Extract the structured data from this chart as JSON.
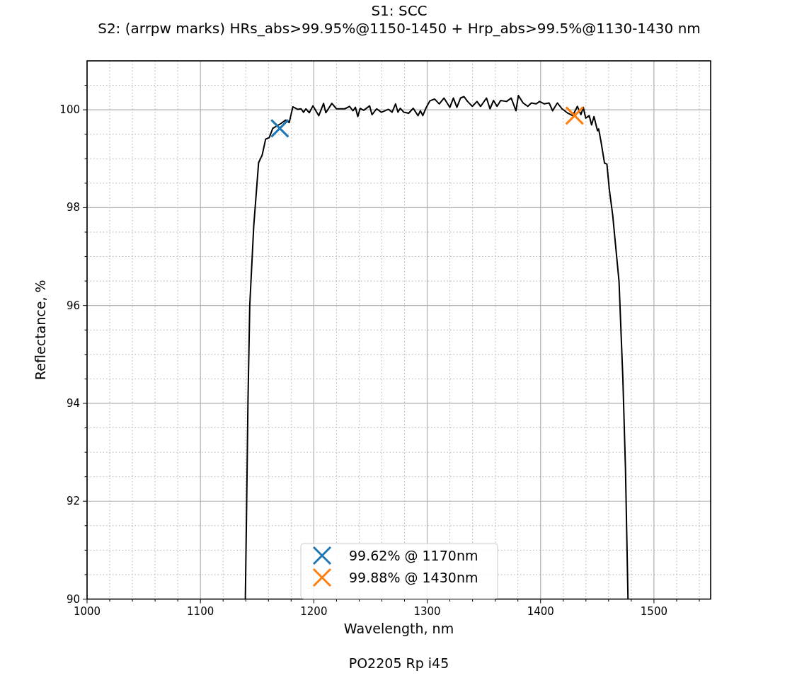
{
  "chart_data": {
    "type": "line",
    "title": "S1: SCC",
    "subtitle": "S2: (arrpw marks) HRs_abs>99.95%@1150-1450 + Hrp_abs>99.5%@1130-1430 nm",
    "xlabel": "Wavelength, nm",
    "ylabel": "Reflectance, %",
    "annotations": [
      "PO2205 Rp i45"
    ],
    "xlim": [
      1000,
      1550
    ],
    "ylim": [
      90,
      101
    ],
    "xticks": [
      1000,
      {
        "value": 1020,
        "label": null
      },
      {
        "value": 1040,
        "label": null
      },
      {
        "value": 1060,
        "label": null
      },
      {
        "value": 1080,
        "label": null
      },
      1100,
      {
        "value": 1120,
        "label": null
      },
      {
        "value": 1140,
        "label": null
      },
      {
        "value": 1160,
        "label": null
      },
      {
        "value": 1180,
        "label": null
      },
      1200,
      {
        "value": 1220,
        "label": null
      },
      {
        "value": 1240,
        "label": null
      },
      {
        "value": 1260,
        "label": null
      },
      {
        "value": 1280,
        "label": null
      },
      1300,
      {
        "value": 1320,
        "label": null
      },
      {
        "value": 1340,
        "label": null
      },
      {
        "value": 1360,
        "label": null
      },
      {
        "value": 1380,
        "label": null
      },
      1400,
      {
        "value": 1420,
        "label": null
      },
      {
        "value": 1440,
        "label": null
      },
      {
        "value": 1460,
        "label": null
      },
      {
        "value": 1480,
        "label": null
      },
      1500,
      {
        "value": 1520,
        "label": null
      },
      {
        "value": 1540,
        "label": null
      }
    ],
    "yticks": [
      90,
      {
        "value": 90.5,
        "label": null
      },
      {
        "value": 91,
        "label": null
      },
      {
        "value": 91.5,
        "label": null
      },
      92,
      {
        "value": 92.5,
        "label": null
      },
      {
        "value": 93,
        "label": null
      },
      {
        "value": 93.5,
        "label": null
      },
      94,
      {
        "value": 94.5,
        "label": null
      },
      {
        "value": 95,
        "label": null
      },
      {
        "value": 95.5,
        "label": null
      },
      96,
      {
        "value": 96.5,
        "label": null
      },
      {
        "value": 97,
        "label": null
      },
      {
        "value": 97.5,
        "label": null
      },
      98,
      {
        "value": 98.5,
        "label": null
      },
      {
        "value": 99,
        "label": null
      },
      {
        "value": 99.5,
        "label": null
      },
      100,
      {
        "value": 100.5,
        "label": null
      }
    ],
    "grid": true,
    "legend": "bottom",
    "series": [
      {
        "color": "#000000",
        "marker": "none",
        "x": [
          1139.6,
          1140.8,
          1141.9,
          1143.5,
          1147,
          1151.3,
          1154.4,
          1157.5,
          1160.6,
          1163.8,
          1171,
          1175.2,
          1178.3,
          1181.5,
          1185.6,
          1188.8,
          1190.9,
          1193,
          1196,
          1199.2,
          1204.4,
          1208.6,
          1210.6,
          1215.9,
          1220,
          1227.3,
          1231.5,
          1234.6,
          1236.7,
          1238.8,
          1240.9,
          1244,
          1249.2,
          1251.3,
          1255.4,
          1259.6,
          1265.9,
          1269,
          1272.1,
          1274.2,
          1276.3,
          1279.4,
          1283.6,
          1287.7,
          1291.9,
          1294,
          1296.1,
          1299.2,
          1302.3,
          1306.5,
          1310.6,
          1314.8,
          1320,
          1323.1,
          1326.2,
          1329.4,
          1332.5,
          1335.6,
          1339.8,
          1343.9,
          1347.1,
          1352.3,
          1355.4,
          1358.5,
          1361.6,
          1364.8,
          1370,
          1374.1,
          1378.3,
          1380.4,
          1384.6,
          1388.7,
          1391.9,
          1396,
          1399.1,
          1403.3,
          1407.5,
          1410.6,
          1414.8,
          1418.9,
          1424.1,
          1428.3,
          1432.5,
          1435.6,
          1437.7,
          1439.8,
          1442.9,
          1445,
          1447.1,
          1450.2,
          1451.2,
          1453.3,
          1456.4,
          1458.5,
          1460.6,
          1463.6,
          1469.2,
          1472.6,
          1474.9,
          1477.1
        ],
        "values": [
          90,
          92,
          94,
          96,
          97.62,
          98.92,
          99.07,
          99.4,
          99.43,
          99.62,
          99.72,
          99.79,
          99.74,
          100.06,
          100.01,
          100.02,
          99.95,
          100.02,
          99.94,
          100.08,
          99.88,
          100.13,
          99.94,
          100.13,
          100.02,
          100.02,
          100.07,
          99.98,
          100.05,
          99.86,
          100.03,
          99.99,
          100.08,
          99.9,
          100.02,
          99.95,
          100.01,
          99.95,
          100.12,
          99.95,
          100.03,
          99.95,
          99.93,
          100.03,
          99.88,
          99.98,
          99.88,
          100.05,
          100.18,
          100.22,
          100.12,
          100.24,
          100.05,
          100.24,
          100.05,
          100.24,
          100.27,
          100.17,
          100.07,
          100.17,
          100.07,
          100.24,
          100.02,
          100.19,
          100.07,
          100.19,
          100.17,
          100.24,
          99.98,
          100.29,
          100.14,
          100.07,
          100.14,
          100.12,
          100.17,
          100.12,
          100.14,
          99.98,
          100.14,
          100.02,
          99.93,
          99.88,
          100.07,
          99.9,
          100.05,
          99.83,
          99.88,
          99.69,
          99.86,
          99.57,
          99.61,
          99.35,
          98.91,
          98.89,
          98.38,
          97.85,
          96.49,
          94.49,
          92.65,
          90
        ]
      },
      {
        "type": "scatter",
        "name": "99.62% @ 1170nm",
        "color": "#1f77b4",
        "marker": "cross",
        "x": [
          1170
        ],
        "values": [
          99.62
        ]
      },
      {
        "type": "scatter",
        "name": "99.88% @ 1430nm",
        "color": "#ff7f0e",
        "marker": "cross",
        "x": [
          1430
        ],
        "values": [
          99.88
        ]
      }
    ]
  }
}
